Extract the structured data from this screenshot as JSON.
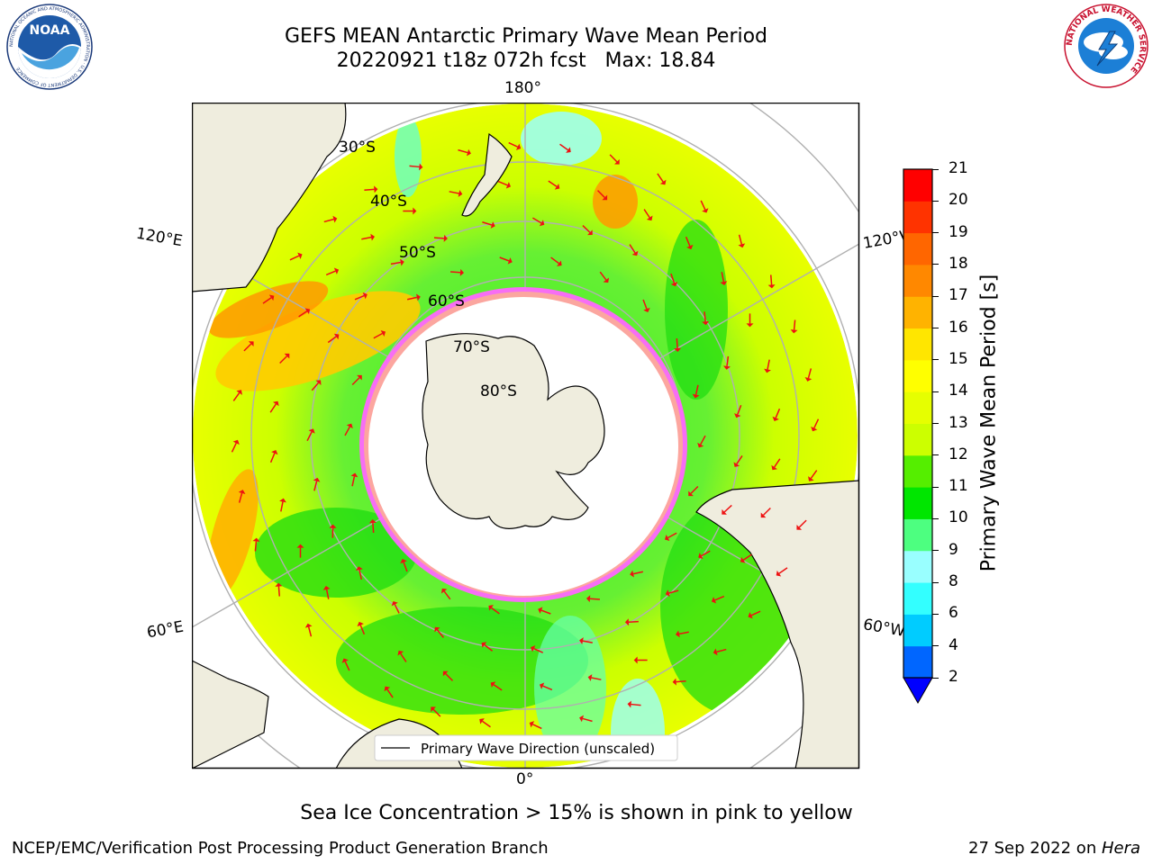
{
  "header": {
    "title_line1": "GEFS MEAN Antarctic Primary Wave Mean Period",
    "title_line2": "20220921 t18z 072h fcst   Max: 18.84"
  },
  "logos": {
    "noaa_text": "NOAA",
    "noaa_ring_text": "NATIONAL OCEANIC AND ATMOSPHERIC ADMINISTRATION · U.S. DEPARTMENT OF COMMERCE",
    "nws_ring_text": "NATIONAL WEATHER SERVICE"
  },
  "map": {
    "projection": "south-polar-stereographic",
    "lon_labels": {
      "top": "180°",
      "bottom": "0°",
      "left_upper": "120°E",
      "left_lower": "60°E",
      "right_upper": "120°W",
      "right_lower": "60°W"
    },
    "lat_labels": [
      "30°S",
      "40°S",
      "50°S",
      "60°S",
      "70°S",
      "80°S"
    ],
    "legend_label": "Primary Wave Direction (unscaled)"
  },
  "colorbar": {
    "label": "Primary Wave Mean Period [s]",
    "ticks": [
      "2",
      "4",
      "6",
      "8",
      "9",
      "10",
      "11",
      "12",
      "13",
      "14",
      "15",
      "16",
      "17",
      "18",
      "19",
      "20",
      "21"
    ],
    "colors": [
      "#0066ff",
      "#00ccff",
      "#33ffff",
      "#99ffff",
      "#4dff80",
      "#00e600",
      "#55ee00",
      "#ccff00",
      "#e6ff00",
      "#ffff00",
      "#ffe600",
      "#ffb300",
      "#ff8800",
      "#ff6600",
      "#ff3300",
      "#ff0000"
    ],
    "underflow_color": "#0000ff"
  },
  "notes": {
    "sea_ice": "Sea Ice Concentration > 15% is shown in pink to yellow"
  },
  "footer": {
    "left": "NCEP/EMC/Verification Post Processing Product Generation Branch",
    "right_prefix": "27 Sep 2022 on ",
    "right_host": "Hera"
  }
}
